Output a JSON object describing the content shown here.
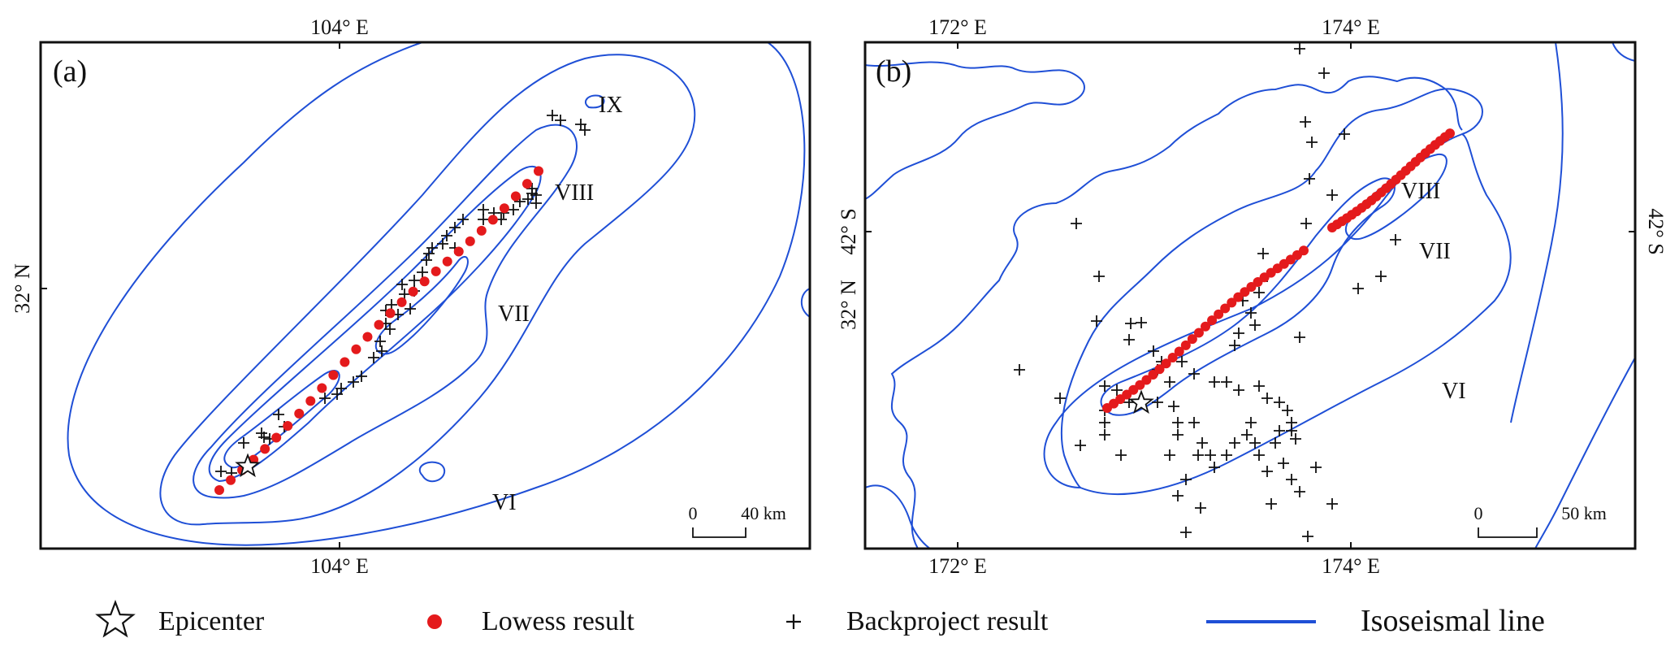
{
  "panel_a": {
    "tag": "(a)",
    "top_lon": "104° E",
    "bottom_lon": "104° E",
    "left_lat": "32° N",
    "intensity": {
      "ix": "IX",
      "viii": "VIII",
      "vii": "VII",
      "vi": "VI"
    },
    "scale": {
      "zero": "0",
      "end": "40 km"
    }
  },
  "panel_b": {
    "tag": "(b)",
    "top_lon_left": "172° E",
    "top_lon_right": "174° E",
    "bottom_lon_left": "172° E",
    "bottom_lon_right": "174° E",
    "left_lat": "32° N",
    "left_lat2": "42° S",
    "right_lat": "42° S",
    "intensity": {
      "viii": "VIII",
      "vii": "VII",
      "vi": "VI"
    },
    "scale": {
      "zero": "0",
      "end": "50 km"
    }
  },
  "legend": {
    "epicenter": "Epicenter",
    "lowess": "Lowess result",
    "backproject": "Backproject result",
    "isoseismal": "Isoseismal line"
  },
  "colors": {
    "isoseismal": "#1f4fd6",
    "lowess": "#e41a1c",
    "backproject": "#111111",
    "frame": "#111111"
  }
}
